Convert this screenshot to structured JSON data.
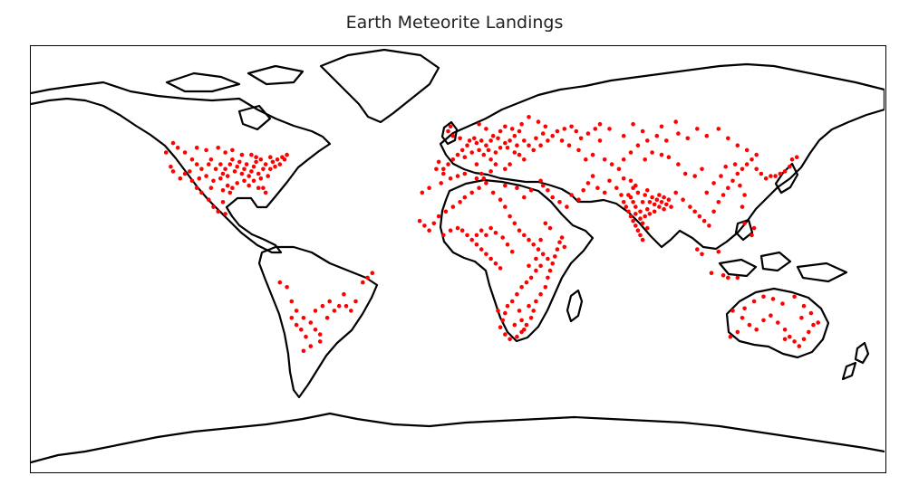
{
  "title": "Earth Meteorite Landings",
  "colors": {
    "points": "#ff0000",
    "coastline": "#000000",
    "background": "#ffffff",
    "frame": "#000000"
  },
  "chart_data": {
    "type": "scatter",
    "projection": "equirectangular",
    "xlim": [
      -180,
      180
    ],
    "ylim": [
      -90,
      90
    ],
    "grid": false,
    "points": [
      [
        -120,
        49
      ],
      [
        -118,
        47
      ],
      [
        -115,
        45
      ],
      [
        -112,
        42
      ],
      [
        -110,
        40
      ],
      [
        -108,
        38
      ],
      [
        -105,
        40
      ],
      [
        -104,
        42
      ],
      [
        -102,
        38
      ],
      [
        -100,
        40
      ],
      [
        -99,
        36
      ],
      [
        -98,
        38
      ],
      [
        -97,
        35
      ],
      [
        -96,
        40
      ],
      [
        -95,
        42
      ],
      [
        -94,
        37
      ],
      [
        -93,
        39
      ],
      [
        -92,
        41
      ],
      [
        -91,
        36
      ],
      [
        -90,
        38
      ],
      [
        -89,
        40
      ],
      [
        -88,
        35
      ],
      [
        -87,
        37
      ],
      [
        -86,
        39
      ],
      [
        -85,
        41
      ],
      [
        -84,
        36
      ],
      [
        -83,
        34
      ],
      [
        -82,
        38
      ],
      [
        -81,
        40
      ],
      [
        -80,
        35
      ],
      [
        -79,
        38
      ],
      [
        -78,
        41
      ],
      [
        -77,
        39
      ],
      [
        -76,
        42
      ],
      [
        -75,
        40
      ],
      [
        -74,
        43
      ],
      [
        -73,
        42
      ],
      [
        -72,
        44
      ],
      [
        -100,
        34
      ],
      [
        -97,
        31
      ],
      [
        -95,
        30
      ],
      [
        -93,
        32
      ],
      [
        -90,
        33
      ],
      [
        -88,
        31
      ],
      [
        -86,
        33
      ],
      [
        -84,
        30
      ],
      [
        -82,
        30
      ],
      [
        -81,
        28
      ],
      [
        -103,
        33
      ],
      [
        -106,
        35
      ],
      [
        -109,
        34
      ],
      [
        -112,
        33
      ],
      [
        -115,
        36
      ],
      [
        -117,
        34
      ],
      [
        -120,
        37
      ],
      [
        -121,
        39
      ],
      [
        -123,
        45
      ],
      [
        -110,
        47
      ],
      [
        -106,
        46
      ],
      [
        -101,
        47
      ],
      [
        -98,
        45
      ],
      [
        -95,
        46
      ],
      [
        -91,
        44
      ],
      [
        -87,
        44
      ],
      [
        -85,
        43
      ],
      [
        -83,
        42
      ],
      [
        -79,
        43
      ],
      [
        -113,
        37
      ],
      [
        -104,
        30
      ],
      [
        -99,
        29
      ],
      [
        -96,
        28
      ],
      [
        -99,
        24
      ],
      [
        -103,
        22
      ],
      [
        -101,
        20
      ],
      [
        -98,
        19
      ],
      [
        -105,
        25
      ],
      [
        -108,
        28
      ],
      [
        -110,
        30
      ],
      [
        -75,
        -10
      ],
      [
        -70,
        -18
      ],
      [
        -68,
        -22
      ],
      [
        -65,
        -25
      ],
      [
        -62,
        -27
      ],
      [
        -60,
        -30
      ],
      [
        -58,
        -32
      ],
      [
        -64,
        -33
      ],
      [
        -68,
        -28
      ],
      [
        -60,
        -22
      ],
      [
        -57,
        -20
      ],
      [
        -54,
        -18
      ],
      [
        -52,
        -22
      ],
      [
        -50,
        -20
      ],
      [
        -47,
        -20
      ],
      [
        -45,
        -22
      ],
      [
        -43,
        -18
      ],
      [
        -40,
        -10
      ],
      [
        -38,
        -8
      ],
      [
        -36,
        -6
      ],
      [
        -48,
        -15
      ],
      [
        -62,
        -37
      ],
      [
        -65,
        -39
      ],
      [
        -58,
        -35
      ],
      [
        -70,
        -25
      ],
      [
        -72,
        -12
      ],
      [
        -66,
        -30
      ],
      [
        -55,
        -25
      ],
      [
        -8,
        41
      ],
      [
        -6,
        38
      ],
      [
        -4,
        40
      ],
      [
        -2,
        42
      ],
      [
        0,
        44
      ],
      [
        2,
        46
      ],
      [
        4,
        48
      ],
      [
        5,
        50
      ],
      [
        7,
        51
      ],
      [
        8,
        49
      ],
      [
        10,
        50
      ],
      [
        12,
        48
      ],
      [
        13,
        46
      ],
      [
        11,
        44
      ],
      [
        14,
        42
      ],
      [
        16,
        45
      ],
      [
        18,
        47
      ],
      [
        20,
        49
      ],
      [
        22,
        50
      ],
      [
        24,
        52
      ],
      [
        26,
        54
      ],
      [
        28,
        50
      ],
      [
        30,
        48
      ],
      [
        32,
        46
      ],
      [
        35,
        48
      ],
      [
        38,
        50
      ],
      [
        40,
        52
      ],
      [
        42,
        54
      ],
      [
        45,
        55
      ],
      [
        48,
        56
      ],
      [
        50,
        54
      ],
      [
        52,
        51
      ],
      [
        55,
        53
      ],
      [
        58,
        55
      ],
      [
        60,
        57
      ],
      [
        15,
        52
      ],
      [
        18,
        54
      ],
      [
        20,
        56
      ],
      [
        23,
        55
      ],
      [
        27,
        57
      ],
      [
        30,
        60
      ],
      [
        34,
        58
      ],
      [
        37,
        56
      ],
      [
        12,
        55
      ],
      [
        9,
        57
      ],
      [
        -2,
        52
      ],
      [
        -4,
        54
      ],
      [
        -3,
        56
      ],
      [
        1,
        51
      ],
      [
        3,
        43
      ],
      [
        6,
        45
      ],
      [
        9,
        46
      ],
      [
        14,
        50
      ],
      [
        17,
        51
      ],
      [
        21,
        47
      ],
      [
        24,
        45
      ],
      [
        26,
        44
      ],
      [
        28,
        42
      ],
      [
        22,
        40
      ],
      [
        20,
        38
      ],
      [
        16,
        40
      ],
      [
        14,
        37
      ],
      [
        -9,
        38
      ],
      [
        -6,
        36
      ],
      [
        10,
        36
      ],
      [
        8,
        40
      ],
      [
        25,
        48
      ],
      [
        33,
        51
      ],
      [
        36,
        53
      ],
      [
        44,
        50
      ],
      [
        47,
        48
      ],
      [
        51,
        46
      ],
      [
        54,
        42
      ],
      [
        57,
        44
      ],
      [
        62,
        42
      ],
      [
        65,
        40
      ],
      [
        68,
        38
      ],
      [
        70,
        42
      ],
      [
        73,
        45
      ],
      [
        76,
        48
      ],
      [
        80,
        50
      ],
      [
        84,
        52
      ],
      [
        88,
        50
      ],
      [
        93,
        53
      ],
      [
        97,
        51
      ],
      [
        101,
        55
      ],
      [
        105,
        52
      ],
      [
        110,
        55
      ],
      [
        114,
        51
      ],
      [
        118,
        48
      ],
      [
        122,
        46
      ],
      [
        126,
        44
      ],
      [
        60,
        50
      ],
      [
        70,
        52
      ],
      [
        78,
        54
      ],
      [
        86,
        56
      ],
      [
        92,
        58
      ],
      [
        64,
        55
      ],
      [
        74,
        57
      ],
      [
        35,
        33
      ],
      [
        36,
        31
      ],
      [
        38,
        29
      ],
      [
        40,
        26
      ],
      [
        43,
        24
      ],
      [
        46,
        22
      ],
      [
        48,
        27
      ],
      [
        51,
        25
      ],
      [
        53,
        29
      ],
      [
        55,
        32
      ],
      [
        57,
        35
      ],
      [
        59,
        30
      ],
      [
        62,
        28
      ],
      [
        64,
        33
      ],
      [
        67,
        30
      ],
      [
        69,
        27
      ],
      [
        70,
        24
      ],
      [
        71,
        22
      ],
      [
        72,
        20
      ],
      [
        73,
        18
      ],
      [
        74,
        16
      ],
      [
        75,
        14
      ],
      [
        76,
        12
      ],
      [
        77,
        10
      ],
      [
        78,
        15
      ],
      [
        79,
        18
      ],
      [
        80,
        21
      ],
      [
        81,
        24
      ],
      [
        82,
        26
      ],
      [
        83,
        23
      ],
      [
        84,
        25
      ],
      [
        85,
        27
      ],
      [
        86,
        24
      ],
      [
        87,
        26
      ],
      [
        88,
        23
      ],
      [
        89,
        25
      ],
      [
        90,
        22
      ],
      [
        77,
        20
      ],
      [
        78,
        24
      ],
      [
        79,
        27
      ],
      [
        80,
        29
      ],
      [
        76,
        28
      ],
      [
        75,
        31
      ],
      [
        74,
        30
      ],
      [
        73,
        26
      ],
      [
        72,
        27
      ],
      [
        75,
        22
      ],
      [
        77,
        17
      ],
      [
        80,
        13
      ],
      [
        78,
        8
      ],
      [
        75,
        19
      ],
      [
        81,
        19
      ],
      [
        83,
        20
      ],
      [
        85,
        22
      ],
      [
        87,
        21
      ],
      [
        74,
        24
      ],
      [
        73,
        33
      ],
      [
        70,
        34
      ],
      [
        92,
        28
      ],
      [
        95,
        25
      ],
      [
        98,
        22
      ],
      [
        100,
        20
      ],
      [
        102,
        18
      ],
      [
        104,
        16
      ],
      [
        106,
        14
      ],
      [
        108,
        20
      ],
      [
        110,
        24
      ],
      [
        112,
        27
      ],
      [
        114,
        30
      ],
      [
        116,
        33
      ],
      [
        118,
        36
      ],
      [
        120,
        38
      ],
      [
        122,
        40
      ],
      [
        124,
        42
      ],
      [
        126,
        38
      ],
      [
        128,
        36
      ],
      [
        130,
        34
      ],
      [
        132,
        35
      ],
      [
        134,
        35
      ],
      [
        136,
        36
      ],
      [
        138,
        37
      ],
      [
        140,
        39
      ],
      [
        141,
        42
      ],
      [
        143,
        43
      ],
      [
        105,
        28
      ],
      [
        108,
        32
      ],
      [
        111,
        35
      ],
      [
        113,
        39
      ],
      [
        117,
        40
      ],
      [
        119,
        31
      ],
      [
        121,
        27
      ],
      [
        100,
        35
      ],
      [
        103,
        38
      ],
      [
        96,
        36
      ],
      [
        93,
        40
      ],
      [
        89,
        43
      ],
      [
        86,
        44
      ],
      [
        82,
        45
      ],
      [
        79,
        42
      ],
      [
        120,
        22
      ],
      [
        121,
        15
      ],
      [
        124,
        10
      ],
      [
        125,
        13
      ],
      [
        110,
        3
      ],
      [
        101,
        4
      ],
      [
        103,
        2
      ],
      [
        107,
        -6
      ],
      [
        112,
        -7
      ],
      [
        114,
        -8
      ],
      [
        118,
        -8
      ],
      [
        -10,
        15
      ],
      [
        -8,
        18
      ],
      [
        -5,
        20
      ],
      [
        -2,
        22
      ],
      [
        1,
        24
      ],
      [
        3,
        26
      ],
      [
        6,
        28
      ],
      [
        9,
        30
      ],
      [
        12,
        32
      ],
      [
        15,
        28
      ],
      [
        18,
        25
      ],
      [
        20,
        22
      ],
      [
        22,
        18
      ],
      [
        24,
        15
      ],
      [
        26,
        12
      ],
      [
        28,
        10
      ],
      [
        30,
        8
      ],
      [
        32,
        6
      ],
      [
        34,
        4
      ],
      [
        36,
        2
      ],
      [
        38,
        0
      ],
      [
        35,
        -3
      ],
      [
        33,
        -5
      ],
      [
        31,
        -8
      ],
      [
        29,
        -10
      ],
      [
        27,
        -12
      ],
      [
        25,
        -15
      ],
      [
        23,
        -18
      ],
      [
        21,
        -20
      ],
      [
        20,
        -23
      ],
      [
        19,
        -26
      ],
      [
        18,
        -29
      ],
      [
        20,
        -32
      ],
      [
        22,
        -34
      ],
      [
        25,
        -33
      ],
      [
        27,
        -31
      ],
      [
        29,
        -28
      ],
      [
        31,
        -25
      ],
      [
        32,
        -22
      ],
      [
        33,
        -18
      ],
      [
        35,
        -15
      ],
      [
        37,
        -12
      ],
      [
        38,
        -8
      ],
      [
        39,
        -5
      ],
      [
        40,
        -2
      ],
      [
        41,
        1
      ],
      [
        42,
        4
      ],
      [
        43,
        7
      ],
      [
        44,
        9
      ],
      [
        10,
        12
      ],
      [
        12,
        10
      ],
      [
        14,
        13
      ],
      [
        16,
        11
      ],
      [
        8,
        10
      ],
      [
        6,
        8
      ],
      [
        4,
        10
      ],
      [
        2,
        12
      ],
      [
        0,
        13
      ],
      [
        -3,
        12
      ],
      [
        -6,
        10
      ],
      [
        -12,
        12
      ],
      [
        -14,
        14
      ],
      [
        -16,
        16
      ],
      [
        8,
        6
      ],
      [
        10,
        4
      ],
      [
        12,
        2
      ],
      [
        14,
        0
      ],
      [
        16,
        -2
      ],
      [
        18,
        -4
      ],
      [
        27,
        -26
      ],
      [
        28,
        -30
      ],
      [
        24,
        -28
      ],
      [
        26,
        -22
      ],
      [
        30,
        -20
      ],
      [
        17,
        -22
      ],
      [
        19,
        9
      ],
      [
        21,
        6
      ],
      [
        23,
        3
      ],
      [
        30,
        -3
      ],
      [
        33,
        0
      ],
      [
        35,
        8
      ],
      [
        37,
        15
      ],
      [
        39,
        13
      ],
      [
        45,
        5
      ],
      [
        -15,
        28
      ],
      [
        -12,
        30
      ],
      [
        -7,
        32
      ],
      [
        -3,
        34
      ],
      [
        0,
        35
      ],
      [
        3,
        36
      ],
      [
        8,
        34
      ],
      [
        11,
        34
      ],
      [
        20,
        31
      ],
      [
        25,
        30
      ],
      [
        28,
        26
      ],
      [
        31,
        29
      ],
      [
        116,
        -22
      ],
      [
        120,
        -25
      ],
      [
        123,
        -28
      ],
      [
        126,
        -30
      ],
      [
        129,
        -26
      ],
      [
        132,
        -24
      ],
      [
        135,
        -27
      ],
      [
        138,
        -30
      ],
      [
        140,
        -33
      ],
      [
        142,
        -35
      ],
      [
        144,
        -37
      ],
      [
        146,
        -34
      ],
      [
        148,
        -31
      ],
      [
        150,
        -28
      ],
      [
        152,
        -27
      ],
      [
        149,
        -23
      ],
      [
        146,
        -20
      ],
      [
        142,
        -16
      ],
      [
        137,
        -19
      ],
      [
        133,
        -17
      ],
      [
        129,
        -16
      ],
      [
        125,
        -18
      ],
      [
        121,
        -21
      ],
      [
        118,
        -31
      ],
      [
        115,
        -33
      ],
      [
        138,
        -34
      ],
      [
        145,
        -25
      ]
    ]
  }
}
